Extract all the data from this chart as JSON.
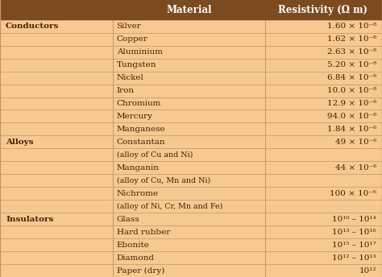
{
  "bg_color": "#F5C990",
  "header_bg": "#7B4A1E",
  "header_text_color": "#FFFFFF",
  "body_text_color": "#4B2000",
  "divider_color": "#C8956A",
  "figsize": [
    4.74,
    3.44
  ],
  "dpi": 100,
  "header": [
    "Material",
    "Resistivity (Ω m)"
  ],
  "rows": [
    {
      "category": "Conductors",
      "cat_bold": true,
      "material": "Silver",
      "resistivity": "1.60 × 10⁻⁸"
    },
    {
      "category": "",
      "cat_bold": false,
      "material": "Copper",
      "resistivity": "1.62 × 10⁻⁸"
    },
    {
      "category": "",
      "cat_bold": false,
      "material": "Aluminium",
      "resistivity": "2.63 × 10⁻⁸"
    },
    {
      "category": "",
      "cat_bold": false,
      "material": "Tungsten",
      "resistivity": "5.20 × 10⁻⁸"
    },
    {
      "category": "",
      "cat_bold": false,
      "material": "Nickel",
      "resistivity": "6.84 × 10⁻⁸"
    },
    {
      "category": "",
      "cat_bold": false,
      "material": "Iron",
      "resistivity": "10.0 × 10⁻⁸"
    },
    {
      "category": "",
      "cat_bold": false,
      "material": "Chromium",
      "resistivity": "12.9 × 10⁻⁸"
    },
    {
      "category": "",
      "cat_bold": false,
      "material": "Mercury",
      "resistivity": "94.0 × 10⁻⁸"
    },
    {
      "category": "",
      "cat_bold": false,
      "material": "Manganese",
      "resistivity": "1.84 × 10⁻⁶"
    },
    {
      "category": "Alloys",
      "cat_bold": true,
      "material": "Constantan",
      "resistivity": "49 × 10⁻⁶"
    },
    {
      "category": "",
      "cat_bold": false,
      "material": "(alloy of Cu and Ni)",
      "resistivity": ""
    },
    {
      "category": "",
      "cat_bold": false,
      "material": "Manganin",
      "resistivity": "44 × 10⁻⁶"
    },
    {
      "category": "",
      "cat_bold": false,
      "material": "(alloy of Cu, Mn and Ni)",
      "resistivity": ""
    },
    {
      "category": "",
      "cat_bold": false,
      "material": "Nichrome",
      "resistivity": "100 × 10⁻⁶"
    },
    {
      "category": "",
      "cat_bold": false,
      "material": "(alloy of Ni, Cr, Mn and Fe)",
      "resistivity": ""
    },
    {
      "category": "Insulators",
      "cat_bold": true,
      "material": "Glass",
      "resistivity": "10¹⁰ – 10¹⁴"
    },
    {
      "category": "",
      "cat_bold": false,
      "material": "Hard rubber",
      "resistivity": "10¹³ – 10¹⁶"
    },
    {
      "category": "",
      "cat_bold": false,
      "material": "Ebonite",
      "resistivity": "10¹⁵ – 10¹⁷"
    },
    {
      "category": "",
      "cat_bold": false,
      "material": "Diamond",
      "resistivity": "10¹² – 10¹³"
    },
    {
      "category": "",
      "cat_bold": false,
      "material": "Paper (dry)",
      "resistivity": "10¹²"
    }
  ]
}
